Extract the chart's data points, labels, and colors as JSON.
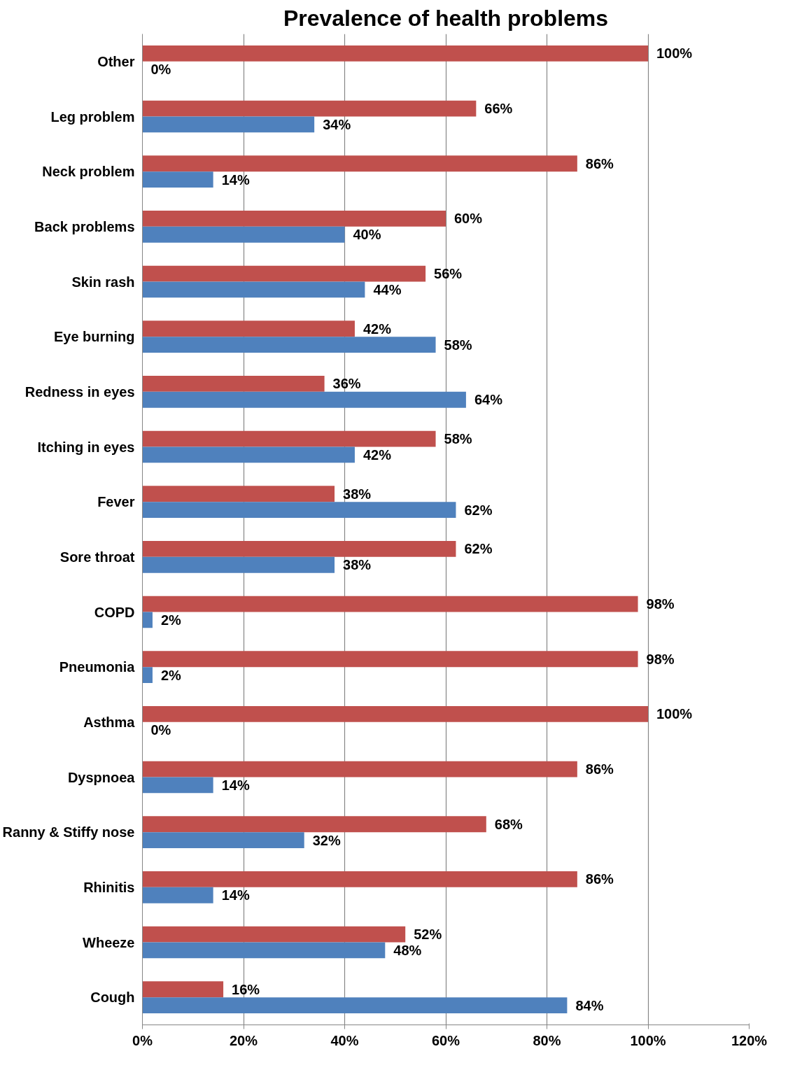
{
  "chart_data": {
    "type": "bar",
    "orientation": "horizontal",
    "title": "Prevalence of health problems",
    "categories": [
      "Other",
      "Leg problem",
      "Neck problem",
      "Back problems",
      "Skin rash",
      "Eye burning",
      "Redness in eyes",
      "Itching in eyes",
      "Fever",
      "Sore throat",
      "COPD",
      "Pneumonia",
      "Asthma",
      "Dyspnoea",
      "Ranny & Stiffy nose",
      "Rhinitis",
      "Wheeze",
      "Cough"
    ],
    "series": [
      {
        "color": "#c0504d",
        "values": [
          100,
          66,
          86,
          60,
          56,
          42,
          36,
          58,
          38,
          62,
          98,
          98,
          100,
          86,
          68,
          86,
          52,
          16
        ],
        "value_labels": [
          "100%",
          "66%",
          "86%",
          "60%",
          "56%",
          "42%",
          "36%",
          "58%",
          "38%",
          "62%",
          "98%",
          "98%",
          "100%",
          "86%",
          "68%",
          "86%",
          "52%",
          "16%"
        ]
      },
      {
        "color": "#4f81bd",
        "values": [
          0,
          34,
          14,
          40,
          44,
          58,
          64,
          42,
          62,
          38,
          2,
          2,
          0,
          14,
          32,
          14,
          48,
          84
        ],
        "value_labels": [
          "0%",
          "34%",
          "14%",
          "40%",
          "44%",
          "58%",
          "64%",
          "42%",
          "62%",
          "38%",
          "2%",
          "2%",
          "0%",
          "14%",
          "32%",
          "14%",
          "48%",
          "84%"
        ]
      }
    ],
    "xlim": [
      0,
      120
    ],
    "xticks": [
      {
        "value": 0,
        "label": "0%"
      },
      {
        "value": 20,
        "label": "20%"
      },
      {
        "value": 40,
        "label": "40%"
      },
      {
        "value": 60,
        "label": "60%"
      },
      {
        "value": 80,
        "label": "80%"
      },
      {
        "value": 100,
        "label": "100%"
      },
      {
        "value": 120,
        "label": "120%"
      }
    ],
    "grid": "x"
  }
}
